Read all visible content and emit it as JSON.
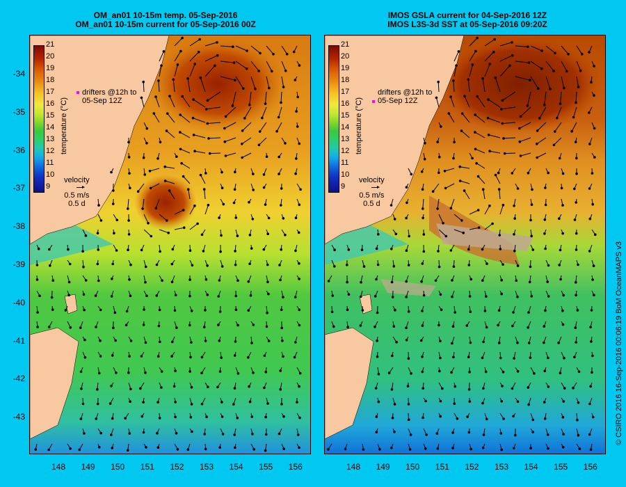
{
  "left_panel": {
    "title_line1": "OM_an01 10-15m temp. 05-Sep-2016",
    "title_line2": "OM_an01 10-15m current for 05-Sep-2016 00Z"
  },
  "right_panel": {
    "title_line1": "IMOS GSLA current for 04-Sep-2016 12Z",
    "title_line2": "IMOS L3S-3d SST at 05-Sep-2016 09:20Z"
  },
  "colorbar": {
    "label": "temperature (°C)",
    "ticks": [
      "21",
      "20",
      "19",
      "18",
      "17",
      "16",
      "15",
      "14",
      "13",
      "12",
      "11",
      "10",
      "9"
    ]
  },
  "drifters_label": "drifters @12h to",
  "drifters_date": "05-Sep 12Z",
  "velocity_label": "velocity",
  "velocity_scale": "0.5 m/s",
  "velocity_time": "0.5 d",
  "lat_labels": [
    "-34",
    "-35",
    "-36",
    "-37",
    "-38",
    "-39",
    "-40",
    "-41",
    "-42",
    "-43"
  ],
  "lon_labels": [
    "148",
    "149",
    "150",
    "151",
    "152",
    "153",
    "154",
    "155",
    "156"
  ],
  "credit": "© CSIRO 2016  16-Sep-2016 00:06:19 BoM OceanMAPS v3",
  "colors": {
    "background": "#00c8f0",
    "land": "#f8c8a0",
    "drifter_marker": "#ff00ff"
  }
}
